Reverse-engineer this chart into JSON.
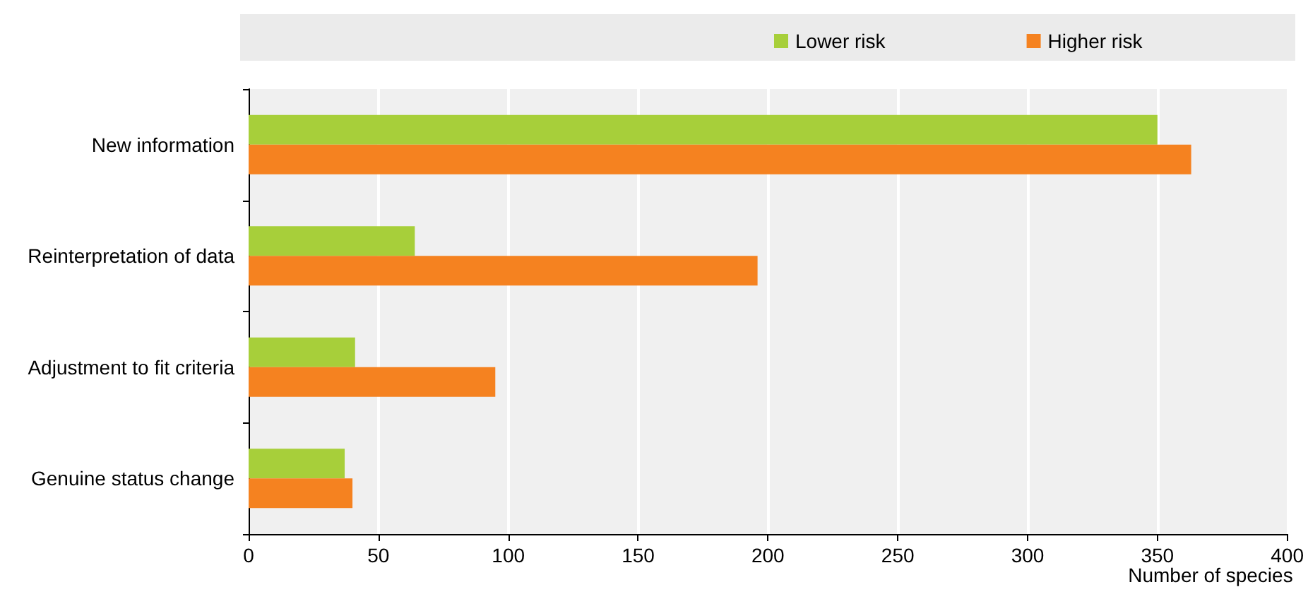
{
  "chart_data": {
    "type": "bar",
    "orientation": "horizontal",
    "xlabel": "Number of species",
    "categories": [
      "New information",
      "Reinterpretation of data",
      "Adjustment to fit criteria",
      "Genuine status change"
    ],
    "series": [
      {
        "name": "Lower risk",
        "color": "#a7cf3a",
        "values": [
          350,
          64,
          41,
          37
        ]
      },
      {
        "name": "Higher risk",
        "color": "#f58220",
        "values": [
          363,
          196,
          95,
          40
        ]
      }
    ],
    "xlim": [
      0,
      400
    ],
    "xticks": [
      0,
      50,
      100,
      150,
      200,
      250,
      300,
      350,
      400
    ],
    "grid": "x",
    "legend": "top"
  }
}
